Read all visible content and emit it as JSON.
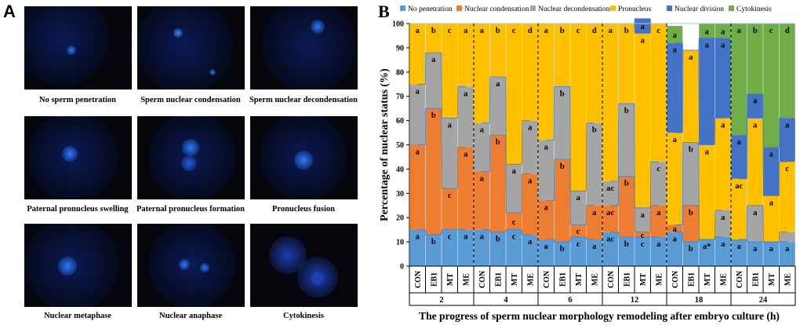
{
  "panel_a": {
    "letter": "A",
    "images": [
      {
        "caption": "No sperm penetration",
        "icon": "no-penetration-micrograph"
      },
      {
        "caption": "Sperm nuclear condensation",
        "icon": "nuclear-condensation-micrograph"
      },
      {
        "caption": "Sperm nuclear decondensation",
        "icon": "nuclear-decondensation-micrograph"
      },
      {
        "caption": "Paternal pronucleus swelling",
        "icon": "pronucleus-swelling-micrograph"
      },
      {
        "caption": "Paternal pronucleus formation",
        "icon": "pronucleus-formation-micrograph"
      },
      {
        "caption": "Pronucleus fusion",
        "icon": "pronucleus-fusion-micrograph"
      },
      {
        "caption": "Nuclear metaphase",
        "icon": "nuclear-metaphase-micrograph"
      },
      {
        "caption": "Nuclear anaphase",
        "icon": "nuclear-anaphase-micrograph"
      },
      {
        "caption": "Cytokinesis",
        "icon": "cytokinesis-micrograph"
      }
    ]
  },
  "panel_b": {
    "letter": "B"
  },
  "chart_data": {
    "type": "bar",
    "stacked": true,
    "title": "",
    "xlabel": "The progress of sperm nuclear morphology remodeling after embryo culture (h)",
    "ylabel": "Percentage of nuclear status (%)",
    "ylim": [
      0,
      100
    ],
    "yticks": [
      0,
      10,
      20,
      30,
      40,
      50,
      60,
      70,
      80,
      90,
      100
    ],
    "legend_position": "top",
    "groups": [
      "2",
      "4",
      "6",
      "12",
      "18",
      "24"
    ],
    "treatments": [
      "CON",
      "EB1",
      "MT",
      "ME"
    ],
    "series": [
      {
        "name": "No penetration",
        "color": "#5b9bd5",
        "values": [
          15,
          13,
          15,
          15,
          15,
          14,
          15,
          13,
          11,
          10,
          12,
          11,
          14,
          12,
          12,
          12,
          14,
          10,
          11,
          12,
          11,
          10,
          10,
          10
        ],
        "letters": [
          "a",
          "b",
          "c",
          "a",
          "a",
          "b",
          "c",
          "a",
          "a",
          "b",
          "c",
          "a",
          "ac",
          "b",
          "c",
          "a",
          "a",
          "b",
          "a*",
          "a",
          "a",
          "a",
          "a",
          "a"
        ]
      },
      {
        "name": "Nuclear condensation",
        "color": "#ed7d31",
        "values": [
          35,
          52,
          17,
          34,
          24,
          40,
          7,
          25,
          16,
          34,
          5,
          14,
          11,
          25,
          2,
          13,
          3,
          15,
          0,
          0,
          0,
          0,
          0,
          0
        ],
        "letters": [
          "a",
          "b",
          "c",
          "a",
          "a",
          "b",
          "c",
          "a",
          "a",
          "b",
          "c",
          "a",
          "ac",
          "b",
          "c",
          "a",
          "a",
          "b",
          "a",
          "a",
          "",
          "",
          "",
          ""
        ]
      },
      {
        "name": "Nuclear decondensation",
        "color": "#a5a5a5",
        "values": [
          25,
          23,
          29,
          25,
          20,
          24,
          20,
          22,
          25,
          30,
          14,
          34,
          10,
          30,
          10,
          18,
          0,
          26,
          0,
          11,
          0,
          15,
          0,
          4
        ],
        "letters": [
          "a",
          "a",
          "a",
          "a",
          "a",
          "a",
          "a",
          "a",
          "a",
          "b",
          "a",
          "b",
          "ac",
          "b",
          "a",
          "c",
          "",
          "b",
          "",
          "a",
          "",
          "a",
          "",
          ""
        ]
      },
      {
        "name": "Pronucleus",
        "color": "#ffc000",
        "values": [
          25,
          12,
          39,
          26,
          41,
          22,
          58,
          40,
          48,
          26,
          69,
          41,
          65,
          33,
          72,
          57,
          38,
          38,
          39,
          38,
          25,
          36,
          19,
          29
        ],
        "letters": [
          "a",
          "b",
          "c",
          "a",
          "a",
          "b",
          "c",
          "d",
          "a",
          "b",
          "c",
          "d",
          "a",
          "b",
          "a",
          "c",
          "a",
          "a",
          "a",
          "a",
          "ac",
          "a",
          "a",
          "c"
        ]
      },
      {
        "name": "Nuclear division",
        "color": "#4472c4",
        "values": [
          0,
          0,
          0,
          0,
          0,
          0,
          0,
          0,
          0,
          0,
          0,
          0,
          0,
          0,
          6,
          0,
          37,
          0,
          44,
          33,
          18,
          10,
          20,
          18
        ],
        "letters": [
          "",
          "",
          "",
          "",
          "",
          "",
          "",
          "",
          "",
          "",
          "",
          "",
          "",
          "",
          "a",
          "",
          "a",
          "",
          "a",
          "a",
          "a",
          "a",
          "a",
          "a"
        ]
      },
      {
        "name": "Cytokinesis",
        "color": "#70ad47",
        "values": [
          0,
          0,
          0,
          0,
          0,
          0,
          0,
          0,
          0,
          0,
          0,
          0,
          0,
          0,
          0,
          0,
          7,
          0,
          6,
          6,
          46,
          29,
          51,
          39
        ],
        "letters": [
          "",
          "",
          "",
          "",
          "",
          "",
          "",
          "",
          "",
          "",
          "",
          "",
          "",
          "",
          "",
          "",
          "a",
          "b*",
          "a",
          "a",
          "a",
          "b",
          "c",
          "d"
        ]
      }
    ]
  }
}
